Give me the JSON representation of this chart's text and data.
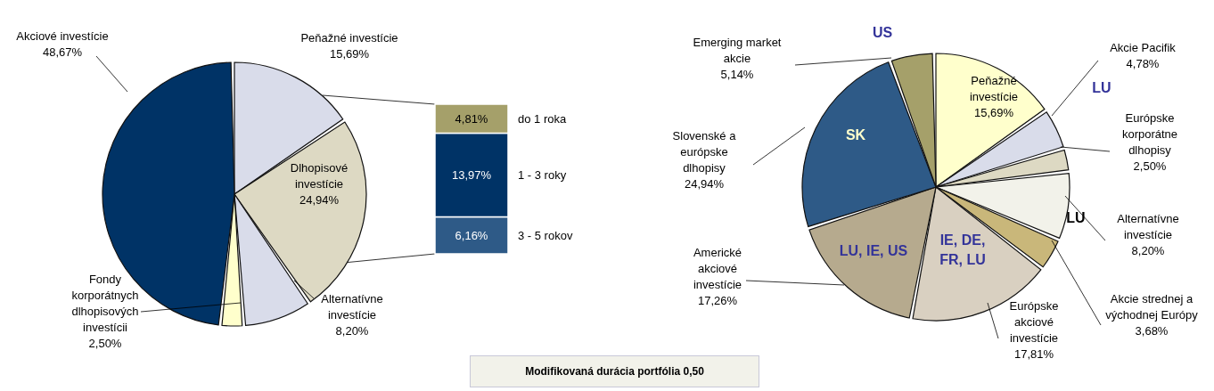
{
  "chart_data": [
    {
      "type": "pie",
      "categories": [
        "Peňažné investície",
        "Dlhopisové investície",
        "Alternatívne investície",
        "Fondy korporátnych dlhopisových investícii",
        "Akciové investície"
      ],
      "values": [
        15.69,
        24.94,
        8.2,
        2.5,
        48.67
      ],
      "colors": [
        "#d9dcea",
        "#ddd9c3",
        "#d9dcea",
        "#ffffcc",
        "#003366"
      ],
      "value_labels": [
        "15,69%",
        "24,94%",
        "8,20%",
        "2,50%",
        "48,67%"
      ]
    },
    {
      "type": "bar",
      "stacked": true,
      "categories": [
        null
      ],
      "series": [
        {
          "name": "3 - 5 rokov",
          "color": "#2e5a87",
          "values": [
            6.16
          ],
          "value_labels": [
            "6,16%"
          ]
        },
        {
          "name": "1 - 3 roky",
          "color": "#003366",
          "values": [
            13.97
          ],
          "value_labels": [
            "13,97%"
          ]
        },
        {
          "name": "do 1 roka",
          "color": "#a5a06a",
          "values": [
            4.81
          ],
          "value_labels": [
            "4,81%"
          ]
        }
      ],
      "annotations": [
        "Modifikovaná durácia portfólia 0,50"
      ]
    },
    {
      "type": "pie",
      "categories": [
        "Peňažné investície",
        "Akcie Pacifik",
        "Európske korporátne dlhopisy",
        "Alternatívne investície",
        "Akcie strednej a východnej Európy",
        "Európske akciové investície",
        "Americké akciové investície",
        "Slovenské a európske dlhopisy",
        "Emerging market akcie"
      ],
      "values": [
        15.69,
        4.78,
        2.5,
        8.2,
        3.68,
        17.81,
        17.26,
        24.94,
        5.14
      ],
      "colors": [
        "#ffffcc",
        "#d9dcea",
        "#ddd9c3",
        "#f2f2ea",
        "#c9b77a",
        "#d9d0c1",
        "#b6aa8e",
        "#2e5a87",
        "#a5a06a"
      ],
      "value_labels": [
        "15,69%",
        "4,78%",
        "2,50%",
        "8,20%",
        "3,68%",
        "17,81%",
        "17,26%",
        "24,94%",
        "5,14%"
      ],
      "annotations": [
        "US",
        "LU",
        "SK",
        "LU",
        "LU, IE, US",
        "IE, DE, FR, LU"
      ]
    }
  ]
}
